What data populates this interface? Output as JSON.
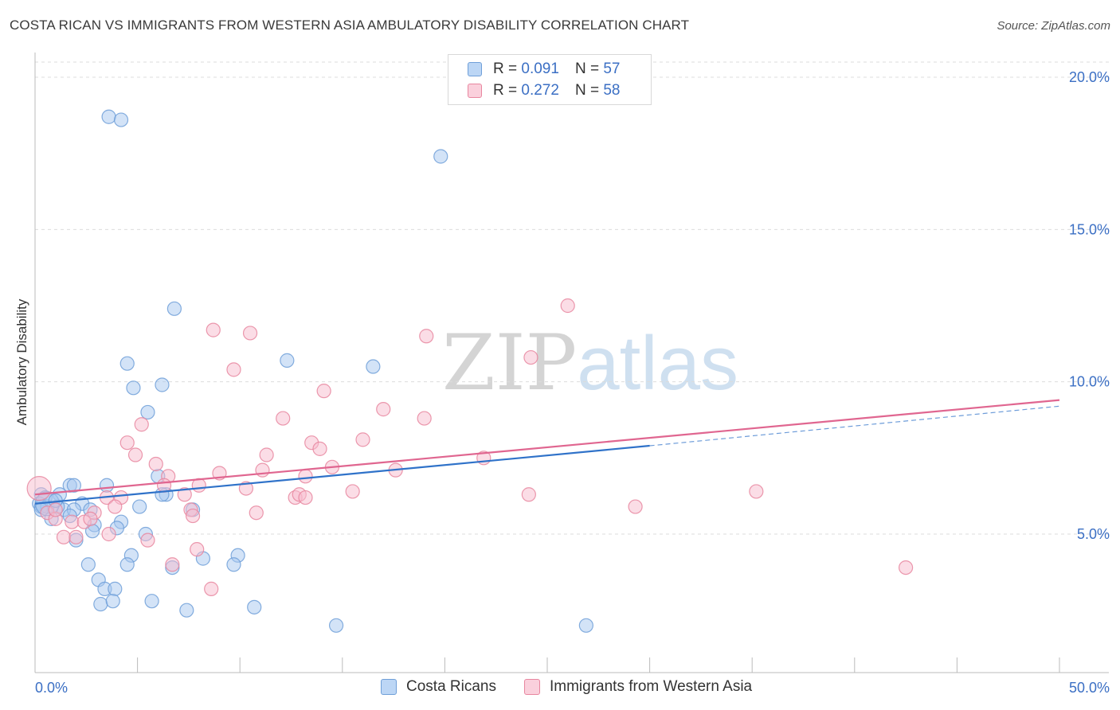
{
  "title": "COSTA RICAN VS IMMIGRANTS FROM WESTERN ASIA AMBULATORY DISABILITY CORRELATION CHART",
  "source": "Source: ZipAtlas.com",
  "watermark": {
    "zip": "ZIP",
    "atlas": "atlas"
  },
  "legend": {
    "r_label": "R =",
    "n_label": "N =",
    "series1": {
      "r": "0.091",
      "n": "57"
    },
    "series2": {
      "r": "0.272",
      "n": "58"
    }
  },
  "bottom_legend": {
    "series1": "Costa Ricans",
    "series2": "Immigrants from Western Asia"
  },
  "colors": {
    "blue_fill": "#a8c8f0",
    "blue_stroke": "#6f9fd8",
    "blue_line": "#2f72c9",
    "pink_fill": "#f7bccd",
    "pink_stroke": "#e8869f",
    "pink_line": "#e06690",
    "tick_text": "#3b6fc4",
    "grid": "#dcdcdc"
  },
  "chart_data": {
    "type": "scatter",
    "title": "COSTA RICAN VS IMMIGRANTS FROM WESTERN ASIA AMBULATORY DISABILITY CORRELATION CHART",
    "xlabel": "",
    "ylabel": "Ambulatory Disability",
    "xlim": [
      0,
      50
    ],
    "ylim": [
      0,
      20.5
    ],
    "x_tick_labels": [
      "0.0%",
      "50.0%"
    ],
    "y_ticks": [
      5,
      10,
      15,
      20
    ],
    "y_tick_labels": [
      "5.0%",
      "10.0%",
      "15.0%",
      "20.0%"
    ],
    "grid": true,
    "legend_position": "top-center",
    "series": [
      {
        "name": "Costa Ricans",
        "r": 0.091,
        "n": 57,
        "trend": {
          "x0": 0,
          "y0": 6.0,
          "x1": 30,
          "y1": 7.9,
          "dashed_to_x": 50,
          "dashed_to_y": 9.2
        },
        "points": [
          [
            3.6,
            18.7
          ],
          [
            4.2,
            18.6
          ],
          [
            19.8,
            17.4
          ],
          [
            6.8,
            12.4
          ],
          [
            4.5,
            10.6
          ],
          [
            12.3,
            10.7
          ],
          [
            16.5,
            10.5
          ],
          [
            6.2,
            9.9
          ],
          [
            4.8,
            9.8
          ],
          [
            5.5,
            9.0
          ],
          [
            6.0,
            6.9
          ],
          [
            3.5,
            6.6
          ],
          [
            1.7,
            6.6
          ],
          [
            1.9,
            6.6
          ],
          [
            6.4,
            6.3
          ],
          [
            6.2,
            6.3
          ],
          [
            0.3,
            6.3
          ],
          [
            1.2,
            6.3
          ],
          [
            2.3,
            6.0
          ],
          [
            0.5,
            6.2
          ],
          [
            0.2,
            6.0
          ],
          [
            0.3,
            5.9
          ],
          [
            0.6,
            5.9
          ],
          [
            1.4,
            5.8
          ],
          [
            1.9,
            5.8
          ],
          [
            2.7,
            5.8
          ],
          [
            5.1,
            5.9
          ],
          [
            7.7,
            5.8
          ],
          [
            1.1,
            5.9
          ],
          [
            0.3,
            5.8
          ],
          [
            0.8,
            5.5
          ],
          [
            1.7,
            5.6
          ],
          [
            2.9,
            5.3
          ],
          [
            4.2,
            5.4
          ],
          [
            2.8,
            5.1
          ],
          [
            4.0,
            5.2
          ],
          [
            5.4,
            5.0
          ],
          [
            2.0,
            4.8
          ],
          [
            4.7,
            4.3
          ],
          [
            8.2,
            4.2
          ],
          [
            9.9,
            4.3
          ],
          [
            2.6,
            4.0
          ],
          [
            4.5,
            4.0
          ],
          [
            6.7,
            3.9
          ],
          [
            9.7,
            4.0
          ],
          [
            3.1,
            3.5
          ],
          [
            3.4,
            3.2
          ],
          [
            3.9,
            3.2
          ],
          [
            3.2,
            2.7
          ],
          [
            3.8,
            2.8
          ],
          [
            5.7,
            2.8
          ],
          [
            7.4,
            2.5
          ],
          [
            10.7,
            2.6
          ],
          [
            14.7,
            2.0
          ],
          [
            26.9,
            2.0
          ],
          [
            0.6,
            6.0
          ],
          [
            1.0,
            6.1
          ]
        ]
      },
      {
        "name": "Immigrants from Western Asia",
        "r": 0.272,
        "n": 58,
        "trend": {
          "x0": 0,
          "y0": 6.3,
          "x1": 50,
          "y1": 9.4
        },
        "points": [
          [
            0.2,
            6.5
          ],
          [
            26.0,
            12.5
          ],
          [
            8.7,
            11.7
          ],
          [
            10.5,
            11.6
          ],
          [
            19.1,
            11.5
          ],
          [
            9.7,
            10.4
          ],
          [
            24.2,
            10.8
          ],
          [
            14.1,
            9.7
          ],
          [
            12.1,
            8.8
          ],
          [
            17.0,
            9.1
          ],
          [
            19.0,
            8.8
          ],
          [
            5.2,
            8.6
          ],
          [
            16.0,
            8.1
          ],
          [
            4.5,
            8.0
          ],
          [
            13.5,
            8.0
          ],
          [
            13.9,
            7.8
          ],
          [
            11.3,
            7.6
          ],
          [
            4.9,
            7.6
          ],
          [
            21.9,
            7.5
          ],
          [
            5.9,
            7.3
          ],
          [
            14.5,
            7.2
          ],
          [
            11.1,
            7.1
          ],
          [
            17.6,
            7.1
          ],
          [
            9.0,
            7.0
          ],
          [
            13.2,
            6.9
          ],
          [
            6.5,
            6.9
          ],
          [
            3.5,
            6.2
          ],
          [
            8.0,
            6.6
          ],
          [
            6.3,
            6.6
          ],
          [
            10.3,
            6.5
          ],
          [
            4.2,
            6.2
          ],
          [
            15.5,
            6.4
          ],
          [
            24.1,
            6.3
          ],
          [
            35.2,
            6.4
          ],
          [
            12.7,
            6.2
          ],
          [
            12.9,
            6.3
          ],
          [
            13.2,
            6.2
          ],
          [
            7.3,
            6.3
          ],
          [
            29.3,
            5.9
          ],
          [
            3.9,
            5.9
          ],
          [
            7.6,
            5.8
          ],
          [
            10.8,
            5.7
          ],
          [
            0.6,
            5.7
          ],
          [
            2.9,
            5.7
          ],
          [
            1.0,
            5.5
          ],
          [
            1.8,
            5.4
          ],
          [
            7.7,
            5.6
          ],
          [
            2.4,
            5.4
          ],
          [
            2.7,
            5.5
          ],
          [
            1.4,
            4.9
          ],
          [
            2.0,
            4.9
          ],
          [
            3.6,
            5.0
          ],
          [
            5.5,
            4.8
          ],
          [
            7.9,
            4.5
          ],
          [
            6.7,
            4.0
          ],
          [
            42.5,
            3.9
          ],
          [
            8.6,
            3.2
          ],
          [
            1.0,
            5.8
          ]
        ]
      }
    ]
  }
}
